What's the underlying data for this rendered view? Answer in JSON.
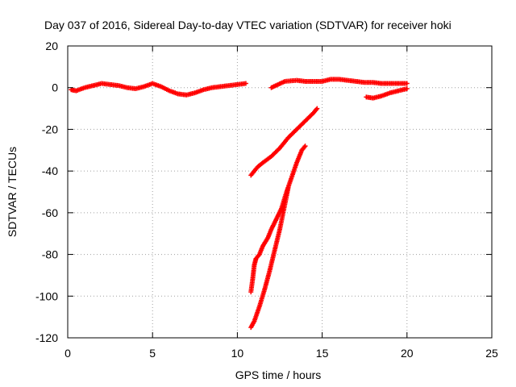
{
  "chart_data": {
    "type": "scatter",
    "title": "Day 037 of 2016, Sidereal Day-to-day VTEC variation (SDTVAR) for receiver hoki",
    "xlabel": "GPS time / hours",
    "ylabel": "SDTVAR / TECUs",
    "xlim": [
      0,
      25
    ],
    "ylim": [
      -120,
      20
    ],
    "xticks": [
      0,
      5,
      10,
      15,
      20,
      25
    ],
    "yticks": [
      -120,
      -100,
      -80,
      -60,
      -40,
      -20,
      0,
      20
    ],
    "xtick_labels": [
      "0",
      "5",
      "10",
      "15",
      "20",
      "25"
    ],
    "ytick_labels": [
      "-120",
      "-100",
      "-80",
      "-60",
      "-40",
      "-20",
      "0",
      "20"
    ],
    "grid": true,
    "legend": "none",
    "marker": "plus",
    "series": [
      {
        "color": "#ff0000",
        "segments": [
          [
            [
              0.2,
              -1
            ],
            [
              0.5,
              -1.5
            ],
            [
              1.0,
              0
            ],
            [
              1.5,
              1
            ],
            [
              2.0,
              2
            ],
            [
              2.5,
              1.5
            ],
            [
              3.0,
              1
            ],
            [
              3.5,
              0
            ],
            [
              4.0,
              -0.5
            ],
            [
              4.5,
              0.5
            ],
            [
              5.0,
              2
            ],
            [
              5.5,
              0.5
            ],
            [
              6.0,
              -1.5
            ],
            [
              6.5,
              -3
            ],
            [
              7.0,
              -3.5
            ],
            [
              7.5,
              -2.5
            ],
            [
              8.0,
              -1
            ],
            [
              8.5,
              0
            ],
            [
              9.0,
              0.5
            ],
            [
              9.5,
              1
            ],
            [
              10.0,
              1.5
            ],
            [
              10.5,
              2
            ]
          ],
          [
            [
              12.0,
              0
            ],
            [
              12.4,
              1.5
            ],
            [
              12.8,
              3
            ],
            [
              13.5,
              3.5
            ],
            [
              14.0,
              3
            ],
            [
              14.5,
              3
            ],
            [
              15.0,
              3
            ],
            [
              15.5,
              4
            ],
            [
              16.0,
              4
            ],
            [
              16.5,
              3.5
            ],
            [
              17.0,
              3
            ],
            [
              17.5,
              2.5
            ],
            [
              18.0,
              2.5
            ],
            [
              18.5,
              2
            ],
            [
              19.0,
              2
            ],
            [
              19.5,
              2
            ],
            [
              20.0,
              2
            ]
          ],
          [
            [
              17.6,
              -4.5
            ],
            [
              18.0,
              -5
            ],
            [
              18.5,
              -4
            ],
            [
              19.0,
              -2.5
            ],
            [
              19.5,
              -1.5
            ],
            [
              20.0,
              -0.5
            ]
          ],
          [
            [
              10.8,
              -42
            ],
            [
              11.2,
              -38
            ],
            [
              11.5,
              -36
            ],
            [
              12.0,
              -33
            ],
            [
              12.5,
              -29
            ],
            [
              13.0,
              -24
            ],
            [
              13.5,
              -20
            ],
            [
              14.0,
              -16
            ],
            [
              14.5,
              -12
            ],
            [
              14.7,
              -10
            ]
          ],
          [
            [
              10.8,
              -98
            ],
            [
              10.9,
              -92
            ],
            [
              11.0,
              -85
            ],
            [
              11.1,
              -82
            ],
            [
              11.3,
              -80
            ],
            [
              11.5,
              -76
            ],
            [
              11.8,
              -72
            ],
            [
              12.0,
              -68
            ],
            [
              12.3,
              -63
            ],
            [
              12.6,
              -58
            ],
            [
              12.9,
              -50
            ],
            [
              13.2,
              -43
            ],
            [
              13.5,
              -36
            ],
            [
              13.8,
              -30
            ],
            [
              14.0,
              -28
            ]
          ],
          [
            [
              10.8,
              -115
            ],
            [
              11.0,
              -112
            ],
            [
              11.3,
              -105
            ],
            [
              11.6,
              -97
            ],
            [
              11.9,
              -88
            ],
            [
              12.2,
              -78
            ],
            [
              12.5,
              -68
            ],
            [
              12.8,
              -56
            ],
            [
              13.0,
              -48
            ]
          ]
        ]
      }
    ]
  }
}
